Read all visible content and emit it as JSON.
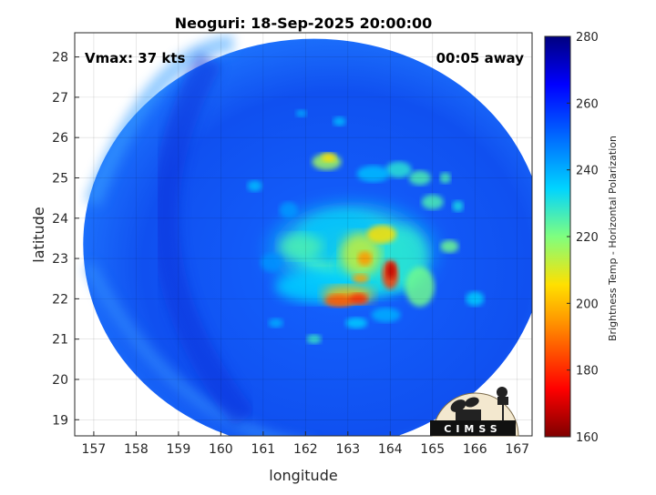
{
  "chart_data": {
    "type": "heatmap",
    "title": "Neoguri: 18-Sep-2025 20:00:00",
    "xlabel": "longitude",
    "ylabel": "latitude",
    "xlim": [
      156.55,
      167.35
    ],
    "ylim": [
      18.6,
      28.6
    ],
    "x_ticks": [
      "157",
      "158",
      "159",
      "160",
      "161",
      "162",
      "163",
      "164",
      "165",
      "166",
      "167"
    ],
    "y_ticks": [
      "19",
      "20",
      "21",
      "22",
      "23",
      "24",
      "25",
      "26",
      "27",
      "28"
    ],
    "grid": true,
    "annotations": {
      "vmax": "Vmax: 37 kts",
      "away": "00:05 away"
    },
    "colorbar": {
      "label": "Brightness Temp - Horizontal Polarization",
      "range": [
        160,
        280
      ],
      "ticks": [
        "160",
        "180",
        "200",
        "220",
        "240",
        "260",
        "280"
      ]
    },
    "scan_region": {
      "center": [
        162.2,
        23.35
      ],
      "radius_lon": 5.45,
      "radius_lat": 5.1
    },
    "features": [
      {
        "name": "deep-convection-band-south",
        "lon": 162.8,
        "lat": 22.0,
        "min_temp": 185
      },
      {
        "name": "deep-convection-core-east",
        "lon": 164.0,
        "lat": 22.6,
        "min_temp": 170
      },
      {
        "name": "convection-center",
        "lon": 163.3,
        "lat": 23.1,
        "min_temp": 200
      },
      {
        "name": "rainband-north",
        "lon": 162.5,
        "lat": 25.4,
        "min_temp": 215
      },
      {
        "name": "rainband-east",
        "lon": 165.4,
        "lat": 23.3,
        "min_temp": 220
      }
    ],
    "logo": "CIMSS",
    "colors": {
      "c160": "#7f0000",
      "c180": "#ff0000",
      "c200": "#ffe000",
      "c220": "#7fff7f",
      "c240": "#00d4ff",
      "c260": "#0050ff",
      "c280": "#00007f"
    }
  }
}
